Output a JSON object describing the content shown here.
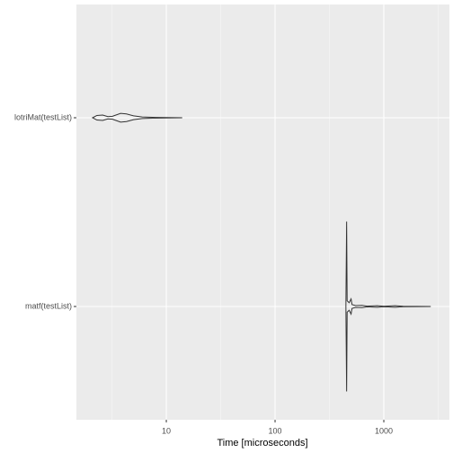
{
  "chart_data": {
    "type": "violin",
    "orientation": "horizontal",
    "xlabel": "Time [microseconds]",
    "categories": [
      "lotriMat(testList)",
      "matf(testList)"
    ],
    "series": [
      {
        "name": "lotriMat(testList)",
        "color": "#333333",
        "x": [
          2.1,
          2.3,
          2.6,
          2.9,
          3.2,
          3.8,
          4.3,
          5,
          6,
          8,
          14
        ],
        "width": [
          0,
          0.012,
          0.014,
          0.006,
          0.008,
          0.023,
          0.02,
          0.01,
          0.004,
          0.002,
          0
        ]
      },
      {
        "name": "matf(testList)",
        "color": "#333333",
        "x": [
          448,
          455,
          460,
          480,
          500,
          510,
          550,
          630,
          700,
          870,
          1000,
          1270,
          1500,
          2700
        ],
        "width": [
          0,
          0.45,
          0.03,
          0.02,
          0.04,
          0.01,
          0.005,
          0.006,
          0.002,
          0.004,
          0.001,
          0.004,
          0.001,
          0
        ]
      }
    ],
    "xlog": true,
    "xlim": [
      1.49,
      4010
    ],
    "xticks": [
      10,
      100,
      1000
    ],
    "minor_xticks": [
      3.16,
      31.6,
      316,
      3162
    ],
    "grid": true
  }
}
